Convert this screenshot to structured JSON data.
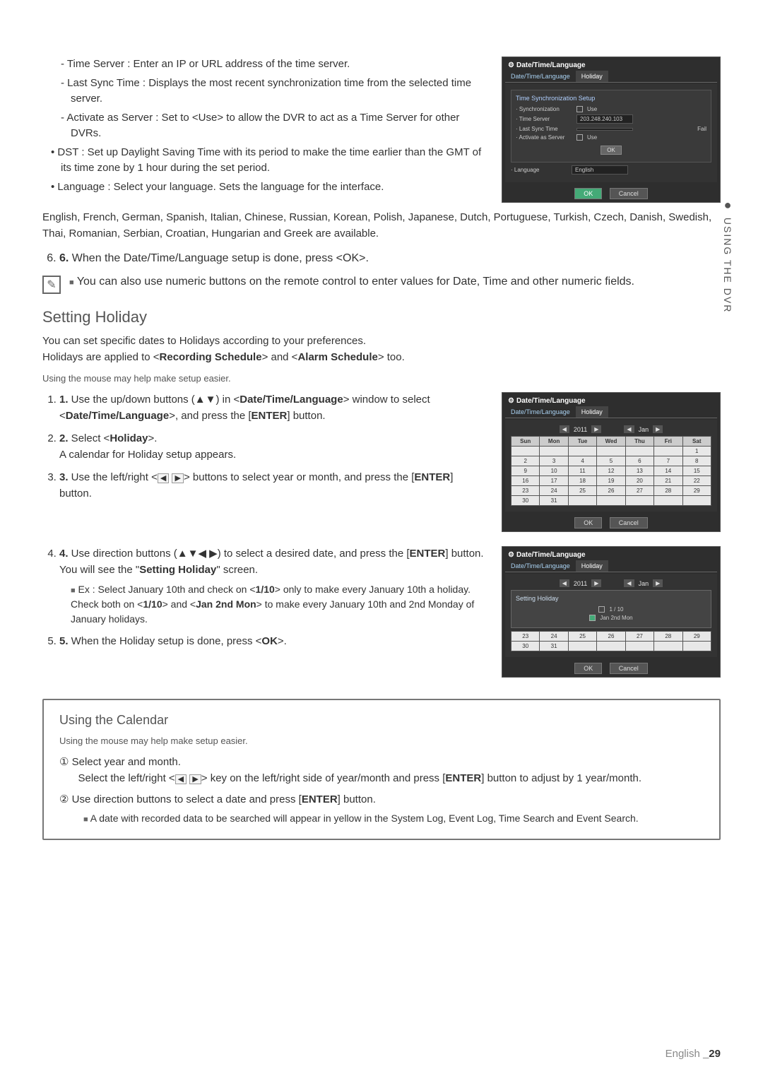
{
  "side_tab": {
    "dot": "●",
    "text": "USING THE DVR"
  },
  "top_bullets": {
    "sub": [
      "Time Server : Enter an IP or URL address of the time server.",
      "Last Sync Time : Displays the most recent synchronization time from the selected time server.",
      "Activate as Server : Set to <Use> to allow the DVR to act as a Time Server for other DVRs."
    ],
    "main": [
      "DST : Set up Daylight Saving Time with its period to make the time earlier than the GMT of its time zone by 1 hour during the set period.",
      "Language : Select your language. Sets the language for the interface."
    ],
    "lang_list": "English, French, German, Spanish, Italian, Chinese, Russian, Korean, Polish, Japanese, Dutch, Portuguese, Turkish, Czech, Danish, Swedish, Thai, Romanian, Serbian, Croatian, Hungarian and Greek are available."
  },
  "step6": "When the Date/Time/Language setup is done, press <OK>.",
  "tip_note": "You can also use numeric buttons on the remote control to enter values for Date, Time and other numeric fields.",
  "section_holiday": {
    "title": "Setting Holiday",
    "p1": "You can set specific dates to Holidays according to your preferences.",
    "p2": "Holidays are applied to <Recording Schedule> and <Alarm Schedule> too.",
    "mouse_note": "Using the mouse may help make setup easier.",
    "steps": [
      "Use the up/down buttons (▲▼) in <Date/Time/Language> window to select <Date/Time/Language>, and press the [ENTER] button.",
      "Select <Holiday>.\nA calendar for Holiday setup appears.",
      "Use the left/right < ◀  ▶ > buttons to select year or month, and press the [ENTER] button."
    ],
    "steps2": [
      "Use direction buttons (▲▼◀ ▶) to select a desired date, and press the [ENTER] button.\nYou will see the \"Setting Holiday\" screen.",
      "When the Holiday setup is done, press <OK>."
    ],
    "ex_note": "Ex : Select January 10th and check on <1/10> only to make every January 10th a holiday. Check both on <1/10> and <Jan 2nd Mon> to make every January 10th and 2nd Monday of January holidays."
  },
  "callout": {
    "title": "Using the Calendar",
    "mouse": "Using the mouse may help make setup easier.",
    "item1_a": "Select year and month.",
    "item1_b": "Select the left/right < ◀  ▶ > key on the left/right side of year/month and press [ENTER] button to adjust by 1 year/month.",
    "item2": "Use direction buttons to select a date and press [ENTER] button.",
    "item2_note": "A date with recorded data to be searched will appear in yellow in the System Log, Event Log, Time Search and Event Search."
  },
  "panels": {
    "panel_title": "Date/Time/Language",
    "tab1": "Date/Time/Language",
    "tab2": "Holiday",
    "sync_box_title": "Time Synchronization Setup",
    "fields": {
      "sync": "· Synchronization",
      "use": "Use",
      "timeserver": "· Time Server",
      "timeserver_val": "203.248.240.103",
      "lastsync": "· Last Sync Time",
      "fail": "Fail",
      "activate": "· Activate as Server",
      "language": "· Language",
      "english": "English"
    },
    "ok": "OK",
    "cancel": "Cancel",
    "year": "2011",
    "month": "Jan",
    "days": [
      "Sun",
      "Mon",
      "Tue",
      "Wed",
      "Thu",
      "Fri",
      "Sat"
    ],
    "cal_rows": [
      [
        "",
        "",
        "",
        "",
        "",
        "",
        "1"
      ],
      [
        "2",
        "3",
        "4",
        "5",
        "6",
        "7",
        "8"
      ],
      [
        "9",
        "10",
        "11",
        "12",
        "13",
        "14",
        "15"
      ],
      [
        "16",
        "17",
        "18",
        "19",
        "20",
        "21",
        "22"
      ],
      [
        "23",
        "24",
        "25",
        "26",
        "27",
        "28",
        "29"
      ],
      [
        "30",
        "31",
        "",
        "",
        "",
        "",
        ""
      ]
    ],
    "setting_holiday_title": "Setting Holiday",
    "opt1": "1 / 10",
    "opt2": "Jan 2nd Mon",
    "partial_rows": [
      [
        "23",
        "24",
        "25",
        "26",
        "27",
        "28",
        "29"
      ],
      [
        "30",
        "31",
        "",
        "",
        "",
        "",
        ""
      ]
    ]
  },
  "footer": {
    "lang": "English ",
    "page": "_29"
  }
}
